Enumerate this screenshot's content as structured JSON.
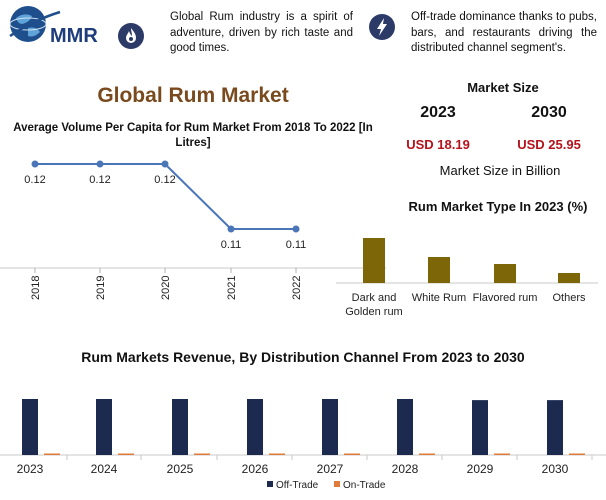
{
  "logo": {
    "text": "MMR"
  },
  "features": [
    {
      "icon": "fire-icon",
      "text": "Global Rum industry is a spirit of adventure, driven by rich taste and good times."
    },
    {
      "icon": "lightning-icon",
      "text": "Off-trade dominance thanks to pubs, bars, and restaurants driving the distributed channel segment's."
    }
  ],
  "main_title": "Global Rum Market",
  "market_size": {
    "title": "Market Size",
    "years": [
      "2023",
      "2030"
    ],
    "values": [
      "USD 18.19",
      "USD 25.95"
    ],
    "unit": "Market Size in Billion"
  },
  "colors": {
    "line": "#4a76b8",
    "type_bars": "#7d6608",
    "off_trade": "#1c2a4f",
    "on_trade": "#e07b39",
    "title_brown": "#7a4a1f",
    "value_red": "#b5121b"
  },
  "chart_data": [
    {
      "type": "line",
      "title": "Average Volume Per Capita for Rum Market From 2018 To 2022 [In Litres]",
      "x": [
        "2018",
        "2019",
        "2020",
        "2021",
        "2022"
      ],
      "y": [
        0.12,
        0.12,
        0.12,
        0.11,
        0.11
      ],
      "data_labels": [
        "0.12",
        "0.12",
        "0.12",
        "0.11",
        "0.11"
      ],
      "xlabel": "",
      "ylabel": ""
    },
    {
      "type": "bar",
      "title": "Rum Market Type In 2023 (%)",
      "categories": [
        "Dark and Golden rum",
        "White Rum",
        "Flavored rum",
        "Others"
      ],
      "values": [
        45,
        26,
        19,
        10
      ],
      "xlabel": "",
      "ylabel": ""
    },
    {
      "type": "bar",
      "title": "Rum Markets Revenue, By Distribution Channel From 2023 to 2030",
      "categories": [
        "2023",
        "2024",
        "2025",
        "2026",
        "2027",
        "2028",
        "2029",
        "2030"
      ],
      "series": [
        {
          "name": "Off-Trade",
          "values": [
            100,
            100,
            100,
            100,
            100,
            100,
            98,
            98
          ]
        },
        {
          "name": "On-Trade",
          "values": [
            1,
            1,
            1,
            1,
            1,
            1,
            2,
            2
          ]
        }
      ],
      "legend": "bottom"
    }
  ]
}
